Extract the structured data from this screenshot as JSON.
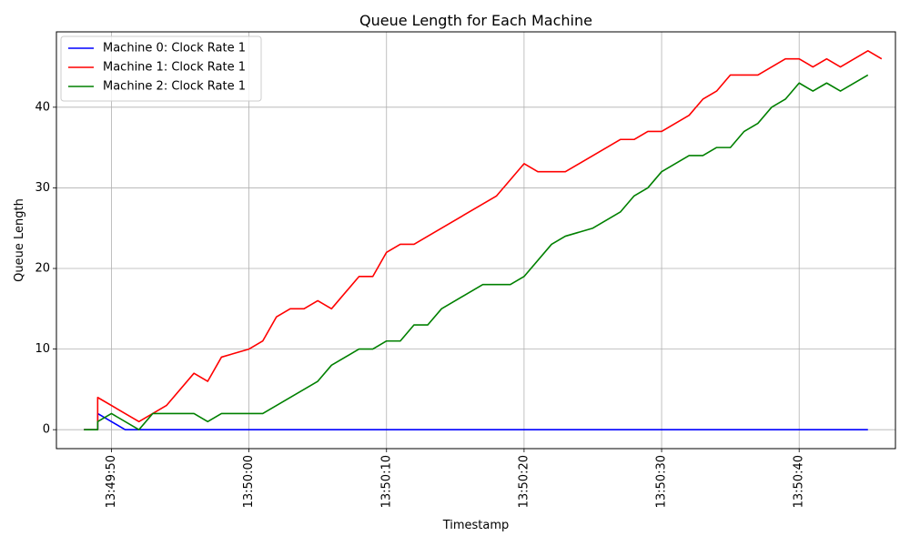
{
  "chart_data": {
    "type": "line",
    "title": "Queue Length for Each Machine",
    "xlabel": "Timestamp",
    "ylabel": "Queue Length",
    "x_time_range": [
      "13:49:46",
      "13:50:47"
    ],
    "ylim": [
      -2.35,
      49.35
    ],
    "x_ticks": [
      "13:49:50",
      "13:50:00",
      "13:50:10",
      "13:50:20",
      "13:50:30",
      "13:50:40"
    ],
    "y_ticks": [
      0,
      10,
      20,
      30,
      40
    ],
    "grid": true,
    "legend_position": "upper-left",
    "series": [
      {
        "name": "Machine 0: Clock Rate 1",
        "color": "#0000ff",
        "points": [
          [
            "13:49:48",
            0
          ],
          [
            "13:49:49",
            0
          ],
          [
            "13:49:49",
            2
          ],
          [
            "13:49:50",
            1
          ],
          [
            "13:49:51",
            0
          ],
          [
            "13:50:45",
            0
          ]
        ]
      },
      {
        "name": "Machine 1: Clock Rate 1",
        "color": "#ff0000",
        "points": [
          [
            "13:49:48",
            0
          ],
          [
            "13:49:49",
            0
          ],
          [
            "13:49:49",
            4
          ],
          [
            "13:49:52",
            1
          ],
          [
            "13:49:53",
            2
          ],
          [
            "13:49:54",
            3
          ],
          [
            "13:49:56",
            7
          ],
          [
            "13:49:57",
            6
          ],
          [
            "13:49:58",
            9
          ],
          [
            "13:50:00",
            10
          ],
          [
            "13:50:01",
            11
          ],
          [
            "13:50:02",
            14
          ],
          [
            "13:50:03",
            15
          ],
          [
            "13:50:04",
            15
          ],
          [
            "13:50:05",
            16
          ],
          [
            "13:50:06",
            15
          ],
          [
            "13:50:08",
            19
          ],
          [
            "13:50:09",
            19
          ],
          [
            "13:50:10",
            22
          ],
          [
            "13:50:11",
            23
          ],
          [
            "13:50:12",
            23
          ],
          [
            "13:50:18",
            29
          ],
          [
            "13:50:20",
            33
          ],
          [
            "13:50:21",
            32
          ],
          [
            "13:50:23",
            32
          ],
          [
            "13:50:27",
            36
          ],
          [
            "13:50:28",
            36
          ],
          [
            "13:50:29",
            37
          ],
          [
            "13:50:30",
            37
          ],
          [
            "13:50:32",
            39
          ],
          [
            "13:50:33",
            41
          ],
          [
            "13:50:34",
            42
          ],
          [
            "13:50:35",
            44
          ],
          [
            "13:50:37",
            44
          ],
          [
            "13:50:39",
            46
          ],
          [
            "13:50:40",
            46
          ],
          [
            "13:50:41",
            45
          ],
          [
            "13:50:42",
            46
          ],
          [
            "13:50:43",
            45
          ],
          [
            "13:50:45",
            47
          ],
          [
            "13:50:46",
            46
          ]
        ]
      },
      {
        "name": "Machine 2: Clock Rate 1",
        "color": "#008000",
        "points": [
          [
            "13:49:48",
            0
          ],
          [
            "13:49:49",
            0
          ],
          [
            "13:49:49",
            1
          ],
          [
            "13:49:50",
            2
          ],
          [
            "13:49:52",
            0
          ],
          [
            "13:49:53",
            2
          ],
          [
            "13:49:56",
            2
          ],
          [
            "13:49:57",
            1
          ],
          [
            "13:49:58",
            2
          ],
          [
            "13:50:01",
            2
          ],
          [
            "13:50:05",
            6
          ],
          [
            "13:50:06",
            8
          ],
          [
            "13:50:08",
            10
          ],
          [
            "13:50:09",
            10
          ],
          [
            "13:50:10",
            11
          ],
          [
            "13:50:11",
            11
          ],
          [
            "13:50:12",
            13
          ],
          [
            "13:50:13",
            13
          ],
          [
            "13:50:14",
            15
          ],
          [
            "13:50:17",
            18
          ],
          [
            "13:50:19",
            18
          ],
          [
            "13:50:20",
            19
          ],
          [
            "13:50:22",
            23
          ],
          [
            "13:50:23",
            24
          ],
          [
            "13:50:25",
            25
          ],
          [
            "13:50:27",
            27
          ],
          [
            "13:50:28",
            29
          ],
          [
            "13:50:29",
            30
          ],
          [
            "13:50:30",
            32
          ],
          [
            "13:50:32",
            34
          ],
          [
            "13:50:33",
            34
          ],
          [
            "13:50:34",
            35
          ],
          [
            "13:50:35",
            35
          ],
          [
            "13:50:36",
            37
          ],
          [
            "13:50:37",
            38
          ],
          [
            "13:50:38",
            40
          ],
          [
            "13:50:39",
            41
          ],
          [
            "13:50:40",
            43
          ],
          [
            "13:50:41",
            42
          ],
          [
            "13:50:42",
            43
          ],
          [
            "13:50:43",
            42
          ],
          [
            "13:50:45",
            44
          ]
        ]
      }
    ]
  }
}
